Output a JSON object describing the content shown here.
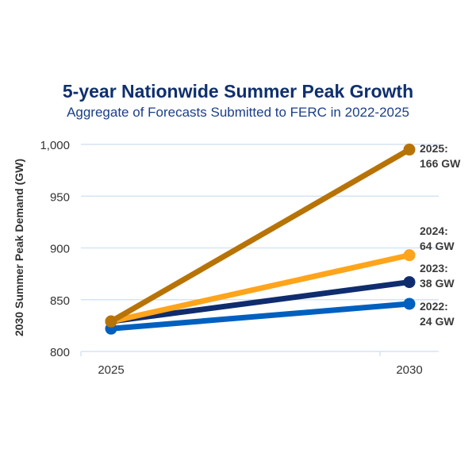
{
  "chart_data": {
    "type": "line",
    "title": "5-year Nationwide Summer Peak Growth",
    "subtitle": "Aggregate of Forecasts Submitted to FERC in 2022-2025",
    "xlabel": "",
    "ylabel": "2030 Summer Peak Demand (GW)",
    "x": [
      "2025",
      "2030"
    ],
    "ylim": [
      800,
      1000
    ],
    "yticks": [
      800,
      850,
      900,
      950,
      1000
    ],
    "ytick_labels": [
      "800",
      "850",
      "900",
      "950",
      "1,000"
    ],
    "grid": true,
    "series": [
      {
        "name": "2022",
        "values": [
          822,
          846
        ],
        "color": "#0060bf",
        "label_line1": "2022:",
        "label_line2": "24 GW"
      },
      {
        "name": "2023",
        "values": [
          829,
          867
        ],
        "color": "#0f2d6e",
        "label_line1": "2023:",
        "label_line2": "38 GW"
      },
      {
        "name": "2024",
        "values": [
          829,
          893
        ],
        "color": "#ffa41b",
        "label_line1": "2024:",
        "label_line2": "64 GW"
      },
      {
        "name": "2025",
        "values": [
          829,
          995
        ],
        "color": "#b87306",
        "label_line1": "2025:",
        "label_line2": "166 GW"
      }
    ]
  }
}
